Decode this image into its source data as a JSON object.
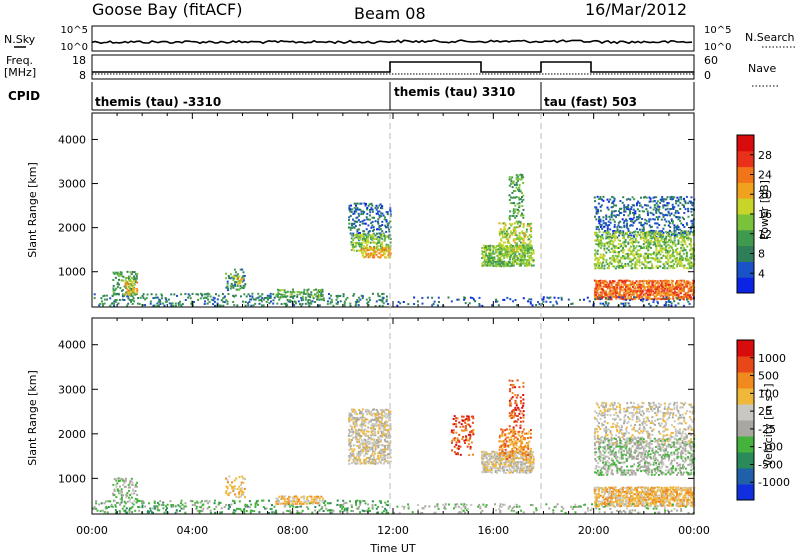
{
  "header": {
    "station": "Goose Bay (fitACF)",
    "beam": "Beam 08",
    "date": "16/Mar/2012"
  },
  "sky_panel": {
    "left_label": "N.Sky",
    "left_ticks": [
      "10^5",
      "10^0"
    ],
    "right_label": "N.Search",
    "right_ticks": [
      "10^5",
      "10^0"
    ]
  },
  "freq_panel": {
    "left_label_1": "Freq.",
    "left_label_2": "[MHz]",
    "left_ticks": [
      "18",
      "8"
    ],
    "right_label": "Nave",
    "right_ticks": [
      "60",
      "0"
    ]
  },
  "cpid_panel": {
    "label": "CPID",
    "modes": [
      {
        "name": "themis (tau) -3310",
        "start": 0,
        "end": 12
      },
      {
        "name": "themis (tau) 3310",
        "start": 12,
        "end": 18
      },
      {
        "name": "tau (fast) 503",
        "start": 18,
        "end": 24
      }
    ]
  },
  "colors": {
    "power_scale": [
      "#0a24e6",
      "#1a52c8",
      "#2f7e5a",
      "#3f9a4e",
      "#79c23a",
      "#c7d42a",
      "#f0a21e",
      "#f07418",
      "#e8301a",
      "#d80c0c"
    ],
    "velocity_scale": [
      "#1030e0",
      "#2060a8",
      "#2a8a5a",
      "#46b23e",
      "#a8a8a0",
      "#c8c8c0",
      "#f0b83a",
      "#f08a1e",
      "#e84818",
      "#d80c0c"
    ]
  },
  "chart_data": [
    {
      "type": "heatmap",
      "panel": "power",
      "ylabel": "Slant Range [km]",
      "xlabel": "Time UT",
      "xlim": [
        0,
        24
      ],
      "ylim": [
        200,
        4600
      ],
      "x_ticks": [
        "00:00",
        "04:00",
        "08:00",
        "12:00",
        "16:00",
        "20:00",
        "00:00"
      ],
      "y_ticks": [
        1000,
        2000,
        3000,
        4000
      ],
      "colorbar": {
        "label": "Power [dB]",
        "ticks": [
          "28",
          "24",
          "20",
          "16",
          "12",
          "8",
          "4"
        ],
        "range": [
          0,
          30
        ]
      },
      "echo_regions": [
        {
          "t0": 0.0,
          "t1": 11.8,
          "r0": 200,
          "r1": 500,
          "level": 8,
          "density": 0.22
        },
        {
          "t0": 0.8,
          "t1": 1.8,
          "r0": 450,
          "r1": 1000,
          "level": 10,
          "density": 0.35
        },
        {
          "t0": 1.3,
          "t1": 1.8,
          "r0": 450,
          "r1": 800,
          "level": 18,
          "density": 0.5
        },
        {
          "t0": 5.3,
          "t1": 6.1,
          "r0": 550,
          "r1": 1050,
          "level": 9,
          "density": 0.35
        },
        {
          "t0": 5.6,
          "t1": 6.0,
          "r0": 700,
          "r1": 900,
          "level": 18,
          "density": 0.5
        },
        {
          "t0": 7.3,
          "t1": 9.2,
          "r0": 400,
          "r1": 600,
          "level": 12,
          "density": 0.6
        },
        {
          "t0": 10.2,
          "t1": 11.9,
          "r0": 1700,
          "r1": 2550,
          "level": 6,
          "density": 0.3
        },
        {
          "t0": 10.3,
          "t1": 11.9,
          "r0": 1450,
          "r1": 1850,
          "level": 14,
          "density": 0.5
        },
        {
          "t0": 10.7,
          "t1": 11.9,
          "r0": 1300,
          "r1": 1550,
          "level": 19,
          "density": 0.6
        },
        {
          "t0": 15.5,
          "t1": 17.6,
          "r0": 1100,
          "r1": 1600,
          "level": 13,
          "density": 0.75
        },
        {
          "t0": 16.2,
          "t1": 17.5,
          "r0": 1400,
          "r1": 2100,
          "level": 15,
          "density": 0.4
        },
        {
          "t0": 16.6,
          "t1": 17.2,
          "r0": 2100,
          "r1": 3200,
          "level": 11,
          "density": 0.3
        },
        {
          "t0": 20.0,
          "t1": 24.0,
          "r0": 1750,
          "r1": 2700,
          "level": 6,
          "density": 0.3
        },
        {
          "t0": 20.0,
          "t1": 24.0,
          "r0": 1050,
          "r1": 1900,
          "level": 14,
          "density": 0.45
        },
        {
          "t0": 20.0,
          "t1": 24.0,
          "r0": 350,
          "r1": 800,
          "level": 23,
          "density": 0.75
        },
        {
          "t0": 12.0,
          "t1": 24.0,
          "r0": 200,
          "r1": 420,
          "level": 5,
          "density": 0.15
        }
      ]
    },
    {
      "type": "heatmap",
      "panel": "velocity",
      "ylabel": "Slant Range [km]",
      "xlabel": "Time UT",
      "xlim": [
        0,
        24
      ],
      "ylim": [
        200,
        4600
      ],
      "x_ticks": [
        "00:00",
        "04:00",
        "08:00",
        "12:00",
        "16:00",
        "20:00",
        "00:00"
      ],
      "y_ticks": [
        1000,
        2000,
        3000,
        4000
      ],
      "colorbar": {
        "label": "Velocity [m s",
        "label_superscript": "-1",
        "label_close": "]",
        "ticks": [
          "1000",
          "500",
          "100",
          "25",
          "-25",
          "-100",
          "-500",
          "-1000"
        ]
      },
      "echo_regions": [
        {
          "t0": 0.0,
          "t1": 11.8,
          "r0": 200,
          "r1": 500,
          "level": 3,
          "density": 0.22
        },
        {
          "t0": 0.8,
          "t1": 1.8,
          "r0": 450,
          "r1": 1000,
          "level": 4,
          "density": 0.35
        },
        {
          "t0": 5.3,
          "t1": 6.1,
          "r0": 550,
          "r1": 1050,
          "level": 6,
          "density": 0.35
        },
        {
          "t0": 7.3,
          "t1": 9.2,
          "r0": 400,
          "r1": 600,
          "level": 6,
          "density": 0.6
        },
        {
          "t0": 10.2,
          "t1": 11.9,
          "r0": 1300,
          "r1": 2550,
          "level": 5,
          "density": 0.55
        },
        {
          "t0": 14.3,
          "t1": 15.2,
          "r0": 1500,
          "r1": 2400,
          "level": 8,
          "density": 0.3
        },
        {
          "t0": 15.5,
          "t1": 17.6,
          "r0": 1100,
          "r1": 1600,
          "level": 5,
          "density": 0.75
        },
        {
          "t0": 16.2,
          "t1": 17.5,
          "r0": 1400,
          "r1": 2100,
          "level": 7,
          "density": 0.4
        },
        {
          "t0": 16.6,
          "t1": 17.2,
          "r0": 2100,
          "r1": 3200,
          "level": 8,
          "density": 0.3
        },
        {
          "t0": 20.0,
          "t1": 24.0,
          "r0": 1750,
          "r1": 2700,
          "level": 5,
          "density": 0.3
        },
        {
          "t0": 20.0,
          "t1": 24.0,
          "r0": 1050,
          "r1": 1900,
          "level": 4,
          "density": 0.45
        },
        {
          "t0": 20.0,
          "t1": 24.0,
          "r0": 350,
          "r1": 800,
          "level": 6,
          "density": 0.75
        },
        {
          "t0": 12.0,
          "t1": 24.0,
          "r0": 200,
          "r1": 420,
          "level": 4,
          "density": 0.15
        }
      ]
    }
  ]
}
